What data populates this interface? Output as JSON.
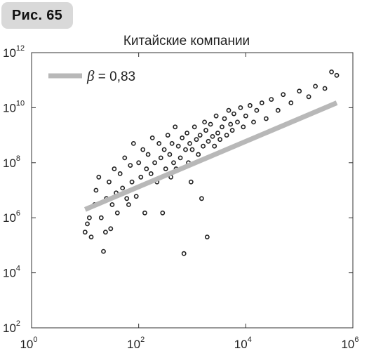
{
  "figure_label": "Рис. 65",
  "chart_data": {
    "type": "scatter",
    "title": "Китайские компании",
    "xlabel": "",
    "ylabel": "",
    "x_scale": "log",
    "y_scale": "log",
    "xlim": [
      1,
      1000000
    ],
    "ylim": [
      100,
      1000000000000
    ],
    "x_ticks": [
      {
        "base": "10",
        "exp": "0",
        "value": 1
      },
      {
        "base": "10",
        "exp": "2",
        "value": 100
      },
      {
        "base": "10",
        "exp": "4",
        "value": 10000
      },
      {
        "base": "10",
        "exp": "6",
        "value": 1000000
      }
    ],
    "y_ticks": [
      {
        "base": "10",
        "exp": "2",
        "value": 100
      },
      {
        "base": "10",
        "exp": "4",
        "value": 10000
      },
      {
        "base": "10",
        "exp": "6",
        "value": 1000000
      },
      {
        "base": "10",
        "exp": "8",
        "value": 100000000
      },
      {
        "base": "10",
        "exp": "10",
        "value": 10000000000
      },
      {
        "base": "10",
        "exp": "12",
        "value": 1000000000000
      }
    ],
    "legend": {
      "symbol": "β",
      "text": " = 0,83",
      "placement": "top-left"
    },
    "fit_line": {
      "slope": 0.83,
      "x": [
        10,
        500000
      ],
      "y": [
        2000000,
        15000000000
      ],
      "color": "#b8b8b8"
    },
    "grid": false,
    "series": [
      {
        "marker": "open-circle",
        "points": [
          [
            10,
            300000
          ],
          [
            11,
            600000
          ],
          [
            12,
            1000000
          ],
          [
            13,
            200000
          ],
          [
            15,
            3000000
          ],
          [
            16,
            10000000
          ],
          [
            18,
            30000000
          ],
          [
            20,
            1000000
          ],
          [
            22,
            60000
          ],
          [
            24,
            300000
          ],
          [
            25,
            5000000
          ],
          [
            28,
            20000000
          ],
          [
            30,
            400000
          ],
          [
            32,
            3000000
          ],
          [
            35,
            60000000
          ],
          [
            38,
            8000000
          ],
          [
            40,
            1500000
          ],
          [
            45,
            40000000
          ],
          [
            50,
            12000000
          ],
          [
            55,
            150000000
          ],
          [
            60,
            5000000
          ],
          [
            65,
            3000000
          ],
          [
            70,
            80000000
          ],
          [
            75,
            20000000
          ],
          [
            80,
            500000000
          ],
          [
            90,
            6000000
          ],
          [
            100,
            100000000
          ],
          [
            110,
            30000000
          ],
          [
            120,
            300000000
          ],
          [
            130,
            1500000
          ],
          [
            140,
            60000000
          ],
          [
            150,
            200000000
          ],
          [
            170,
            40000000
          ],
          [
            180,
            800000000
          ],
          [
            200,
            100000000
          ],
          [
            220,
            20000000
          ],
          [
            240,
            500000000
          ],
          [
            260,
            150000000
          ],
          [
            280,
            1500000
          ],
          [
            300,
            300000000
          ],
          [
            320,
            60000000
          ],
          [
            350,
            1000000000
          ],
          [
            380,
            200000000
          ],
          [
            400,
            30000000
          ],
          [
            420,
            500000000
          ],
          [
            450,
            100000000
          ],
          [
            480,
            2000000000
          ],
          [
            500,
            60000000
          ],
          [
            550,
            400000000
          ],
          [
            600,
            150000000
          ],
          [
            650,
            800000000
          ],
          [
            700,
            50000
          ],
          [
            750,
            300000000
          ],
          [
            800,
            1200000000
          ],
          [
            850,
            100000000
          ],
          [
            900,
            500000000
          ],
          [
            950,
            20000000
          ],
          [
            1000,
            300000000
          ],
          [
            1100,
            2000000000
          ],
          [
            1200,
            700000000
          ],
          [
            1300,
            200000000
          ],
          [
            1400,
            1000000000
          ],
          [
            1500,
            5000000
          ],
          [
            1600,
            400000000
          ],
          [
            1700,
            3000000000
          ],
          [
            1800,
            1500000000
          ],
          [
            1900,
            200000
          ],
          [
            2000,
            600000000
          ],
          [
            2200,
            2500000000
          ],
          [
            2400,
            900000000
          ],
          [
            2600,
            400000000
          ],
          [
            2800,
            5000000000
          ],
          [
            3000,
            1200000000
          ],
          [
            3300,
            700000000
          ],
          [
            3600,
            2000000000
          ],
          [
            4000,
            4000000000
          ],
          [
            4400,
            1000000000
          ],
          [
            4800,
            8000000000
          ],
          [
            5200,
            2500000000
          ],
          [
            5600,
            1500000000
          ],
          [
            6000,
            6000000000
          ],
          [
            7000,
            3000000000
          ],
          [
            8000,
            10000000000
          ],
          [
            9000,
            2000000000
          ],
          [
            10000,
            5000000000
          ],
          [
            12000,
            12000000000
          ],
          [
            14000,
            3000000000
          ],
          [
            16000,
            8000000000
          ],
          [
            20000,
            15000000000
          ],
          [
            24000,
            4000000000
          ],
          [
            30000,
            20000000000
          ],
          [
            40000,
            8000000000
          ],
          [
            50000,
            30000000000
          ],
          [
            70000,
            15000000000
          ],
          [
            100000,
            40000000000
          ],
          [
            150000,
            25000000000
          ],
          [
            200000,
            60000000000
          ],
          [
            300000,
            50000000000
          ],
          [
            400000,
            200000000000
          ],
          [
            500000,
            150000000000
          ]
        ]
      }
    ]
  }
}
